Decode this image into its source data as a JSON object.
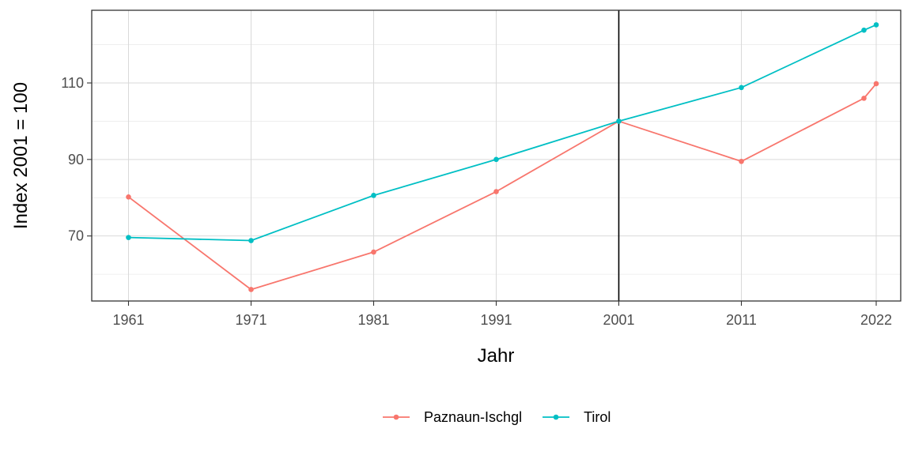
{
  "chart_data": {
    "type": "line",
    "xlabel": "Jahr",
    "ylabel": "Index 2001 = 100",
    "x_ticks": [
      1961,
      1971,
      1981,
      1991,
      2001,
      2011,
      2022
    ],
    "y_ticks": [
      70,
      90,
      110
    ],
    "xlim": [
      1958,
      2024
    ],
    "ylim": [
      53,
      129
    ],
    "grid": true,
    "reference_line_x": 2001,
    "legend_position": "bottom",
    "series": [
      {
        "name": "Paznaun-Ischgl",
        "color": "#F8766D",
        "x": [
          1961,
          1971,
          1981,
          1991,
          2001,
          2011,
          2021,
          2022
        ],
        "y": [
          80.2,
          56.0,
          65.8,
          81.6,
          100.0,
          89.5,
          106.0,
          109.8
        ]
      },
      {
        "name": "Tirol",
        "color": "#00BFC4",
        "x": [
          1961,
          1971,
          1981,
          1991,
          2001,
          2011,
          2021,
          2022
        ],
        "y": [
          69.6,
          68.8,
          80.6,
          90.0,
          100.0,
          108.8,
          123.8,
          125.2
        ]
      }
    ]
  }
}
